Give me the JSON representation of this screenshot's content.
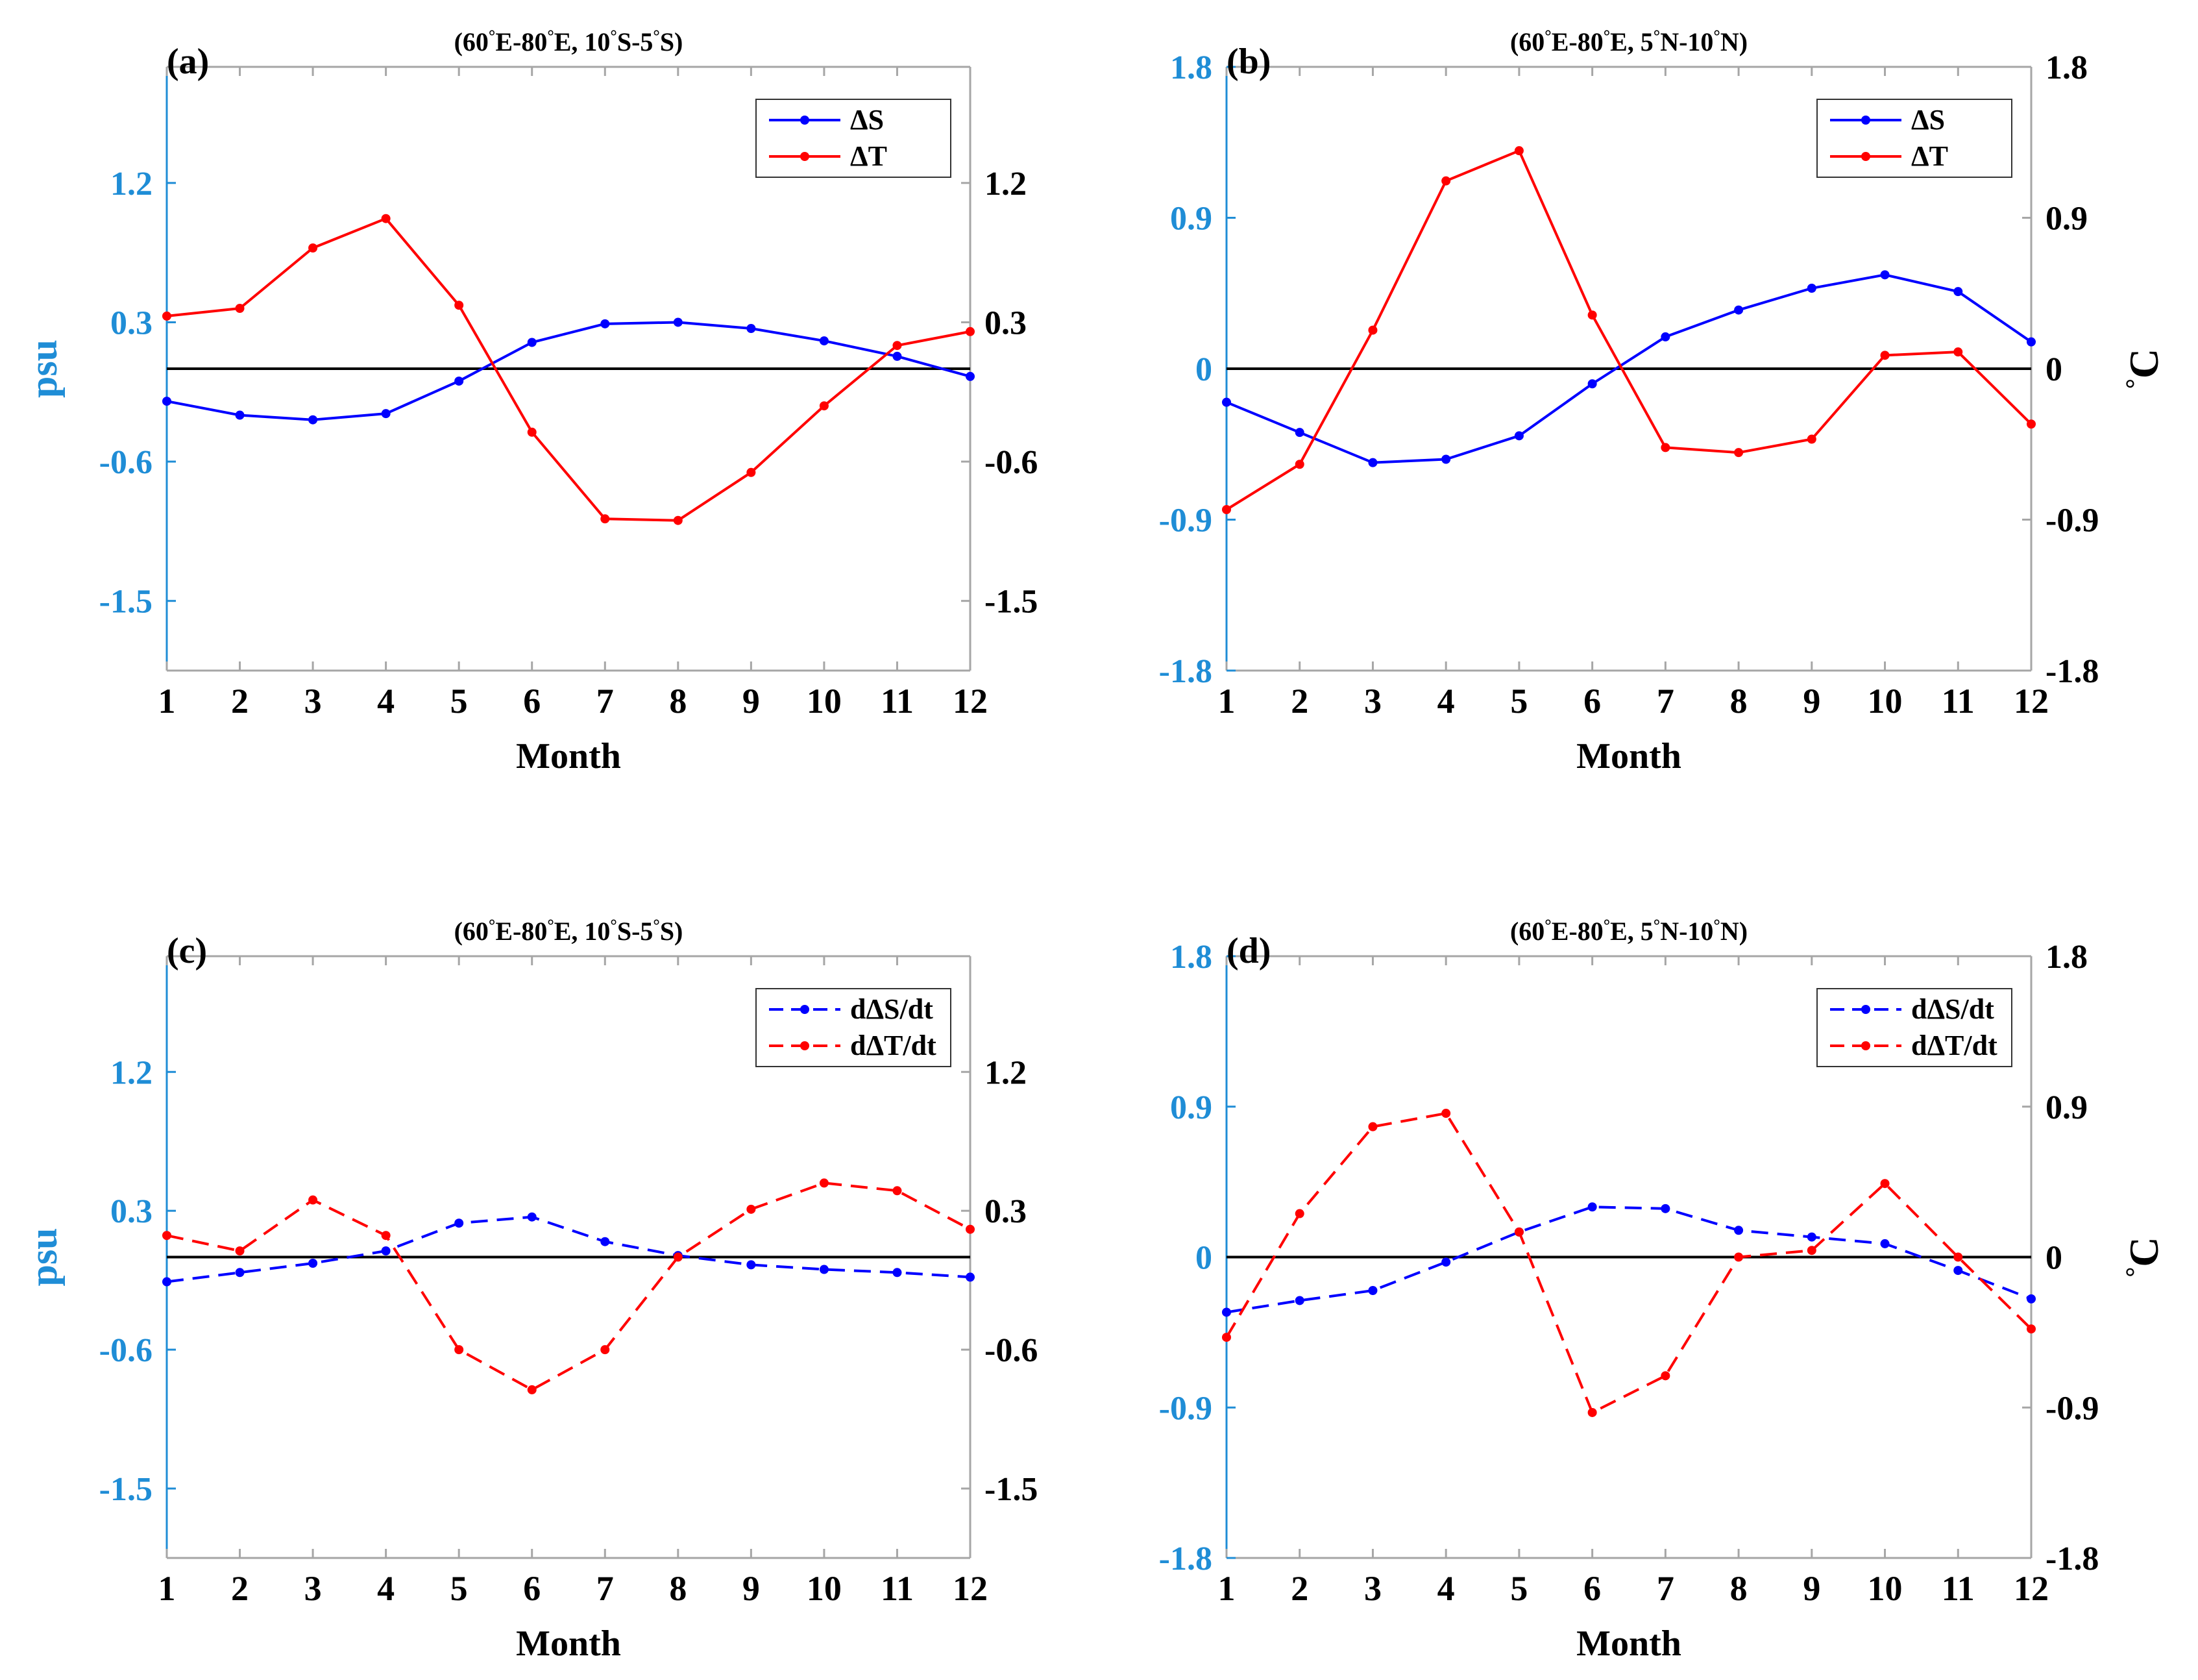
{
  "colors": {
    "left_axis": "#1f8dd6",
    "right_axis": "#555555",
    "salinity": "#0000ff",
    "temperature": "#ff0000",
    "zero_line": "#000000",
    "frame": "#a6a6a6"
  },
  "chart_data": [
    {
      "id": "a",
      "type": "line",
      "panel_label": "(a)",
      "title": "(60°E-80°E, 10°S-5°S)",
      "xlabel": "Month",
      "ylabel_left": "psu",
      "ylabel_right": "",
      "x": [
        1,
        2,
        3,
        4,
        5,
        6,
        7,
        8,
        9,
        10,
        11,
        12
      ],
      "xticks": [
        "1",
        "2",
        "3",
        "4",
        "5",
        "6",
        "7",
        "8",
        "9",
        "10",
        "11",
        "12"
      ],
      "ylim": [
        -1.95,
        1.95
      ],
      "yticks": [
        "1.2",
        "0.3",
        "-0.6",
        "-1.5"
      ],
      "yticks_right": [
        "1.2",
        "0.3",
        "-0.6",
        "-1.5"
      ],
      "legend_position": "top-right",
      "series": [
        {
          "name": "ΔS",
          "dashed": false,
          "color_key": "salinity",
          "values": [
            -0.21,
            -0.3,
            -0.33,
            -0.29,
            -0.08,
            0.17,
            0.29,
            0.3,
            0.26,
            0.18,
            0.08,
            -0.05
          ]
        },
        {
          "name": "ΔT",
          "dashed": false,
          "color_key": "temperature",
          "values": [
            0.34,
            0.39,
            0.78,
            0.97,
            0.41,
            -0.41,
            -0.97,
            -0.98,
            -0.67,
            -0.24,
            0.15,
            0.24
          ]
        }
      ]
    },
    {
      "id": "b",
      "type": "line",
      "panel_label": "(b)",
      "title": "(60°E-80°E, 5°N-10°N)",
      "xlabel": "Month",
      "ylabel_left": "",
      "ylabel_right": "°C",
      "x": [
        1,
        2,
        3,
        4,
        5,
        6,
        7,
        8,
        9,
        10,
        11,
        12
      ],
      "xticks": [
        "1",
        "2",
        "3",
        "4",
        "5",
        "6",
        "7",
        "8",
        "9",
        "10",
        "11",
        "12"
      ],
      "ylim": [
        -1.8,
        1.8
      ],
      "yticks": [
        "1.8",
        "0.9",
        "0",
        "-0.9",
        "-1.8"
      ],
      "yticks_right": [
        "1.8",
        "0.9",
        "0",
        "-0.9",
        "-1.8"
      ],
      "legend_position": "top-right",
      "series": [
        {
          "name": "ΔS",
          "dashed": false,
          "color_key": "salinity",
          "values": [
            -0.2,
            -0.38,
            -0.56,
            -0.54,
            -0.4,
            -0.09,
            0.19,
            0.35,
            0.48,
            0.56,
            0.46,
            0.16
          ]
        },
        {
          "name": "ΔT",
          "dashed": false,
          "color_key": "temperature",
          "values": [
            -0.84,
            -0.57,
            0.23,
            1.12,
            1.3,
            0.32,
            -0.47,
            -0.5,
            -0.42,
            0.08,
            0.1,
            -0.33
          ]
        }
      ]
    },
    {
      "id": "c",
      "type": "line",
      "panel_label": "(c)",
      "title": "(60°E-80°E, 10°S-5°S)",
      "xlabel": "Month",
      "ylabel_left": "psu",
      "ylabel_right": "",
      "x": [
        1,
        2,
        3,
        4,
        5,
        6,
        7,
        8,
        9,
        10,
        11,
        12
      ],
      "xticks": [
        "1",
        "2",
        "3",
        "4",
        "5",
        "6",
        "7",
        "8",
        "9",
        "10",
        "11",
        "12"
      ],
      "ylim": [
        -1.95,
        1.95
      ],
      "yticks": [
        "1.2",
        "0.3",
        "-0.6",
        "-1.5"
      ],
      "yticks_right": [
        "1.2",
        "0.3",
        "-0.6",
        "-1.5"
      ],
      "legend_position": "top-right",
      "series": [
        {
          "name": "dΔS/dt",
          "dashed": true,
          "color_key": "salinity",
          "values": [
            -0.16,
            -0.1,
            -0.04,
            0.04,
            0.22,
            0.26,
            0.1,
            0.01,
            -0.05,
            -0.08,
            -0.1,
            -0.13
          ]
        },
        {
          "name": "dΔT/dt",
          "dashed": true,
          "color_key": "temperature",
          "values": [
            0.14,
            0.04,
            0.37,
            0.14,
            -0.6,
            -0.86,
            -0.6,
            0.0,
            0.31,
            0.48,
            0.43,
            0.18
          ]
        }
      ]
    },
    {
      "id": "d",
      "type": "line",
      "panel_label": "(d)",
      "title": "(60°E-80°E, 5°N-10°N)",
      "xlabel": "Month",
      "ylabel_left": "",
      "ylabel_right": "°C",
      "x": [
        1,
        2,
        3,
        4,
        5,
        6,
        7,
        8,
        9,
        10,
        11,
        12
      ],
      "xticks": [
        "1",
        "2",
        "3",
        "4",
        "5",
        "6",
        "7",
        "8",
        "9",
        "10",
        "11",
        "12"
      ],
      "ylim": [
        -1.8,
        1.8
      ],
      "yticks": [
        "1.8",
        "0.9",
        "0",
        "-0.9",
        "-1.8"
      ],
      "yticks_right": [
        "1.8",
        "0.9",
        "0",
        "-0.9",
        "-1.8"
      ],
      "legend_position": "top-right",
      "series": [
        {
          "name": "dΔS/dt",
          "dashed": true,
          "color_key": "salinity",
          "values": [
            -0.33,
            -0.26,
            -0.2,
            -0.03,
            0.15,
            0.3,
            0.29,
            0.16,
            0.12,
            0.08,
            -0.08,
            -0.25
          ]
        },
        {
          "name": "dΔT/dt",
          "dashed": true,
          "color_key": "temperature",
          "values": [
            -0.48,
            0.26,
            0.78,
            0.86,
            0.15,
            -0.93,
            -0.71,
            0.0,
            0.04,
            0.44,
            0.0,
            -0.43
          ]
        }
      ]
    }
  ]
}
